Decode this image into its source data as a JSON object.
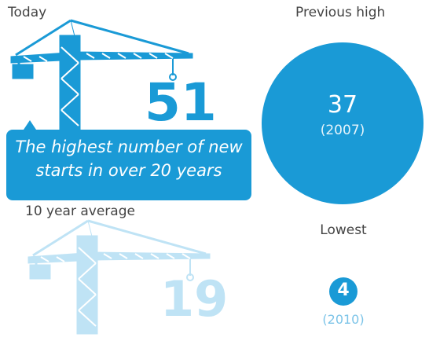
{
  "today": {
    "label": "Today",
    "value": 51,
    "note": "The highest number of new starts in over 20 years"
  },
  "previous_high": {
    "label": "Previous high",
    "value": 37,
    "year": "(2007)"
  },
  "ten_year_average": {
    "label": "10 year average",
    "value": 19
  },
  "lowest": {
    "label": "Lowest",
    "value": 4,
    "year": "(2010)"
  }
}
